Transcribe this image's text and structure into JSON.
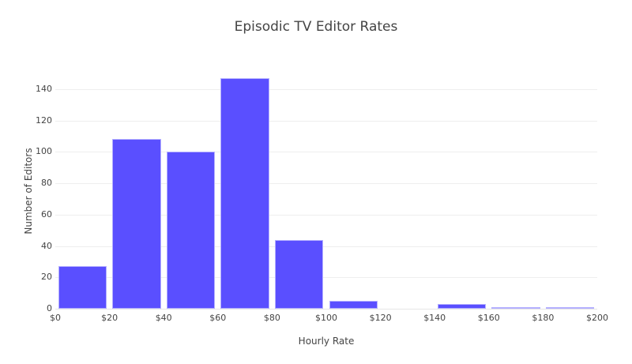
{
  "chart_data": {
    "type": "bar",
    "title": "Episodic TV Editor Rates",
    "xlabel": "Hourly Rate",
    "ylabel": "Number of Editors",
    "categories": [
      "$0-$20",
      "$20-$40",
      "$40-$60",
      "$60-$80",
      "$80-$100",
      "$100-$120",
      "$120-$140",
      "$140-$160",
      "$160-$180",
      "$180-$200"
    ],
    "bin_edges": [
      0,
      20,
      40,
      60,
      80,
      100,
      120,
      140,
      160,
      180,
      200
    ],
    "values": [
      27,
      108,
      100,
      147,
      44,
      5,
      0,
      3,
      1,
      1
    ],
    "xlim": [
      0,
      200
    ],
    "ylim": [
      0,
      149.5
    ],
    "x_ticks": [
      "$0",
      "$20",
      "$40",
      "$60",
      "$80",
      "$100",
      "$120",
      "$140",
      "$160",
      "$180",
      "$200"
    ],
    "y_ticks": [
      "0",
      "20",
      "40",
      "60",
      "80",
      "100",
      "120",
      "140"
    ],
    "grid": true,
    "legend": null,
    "bar_color": "#5a4fff"
  }
}
